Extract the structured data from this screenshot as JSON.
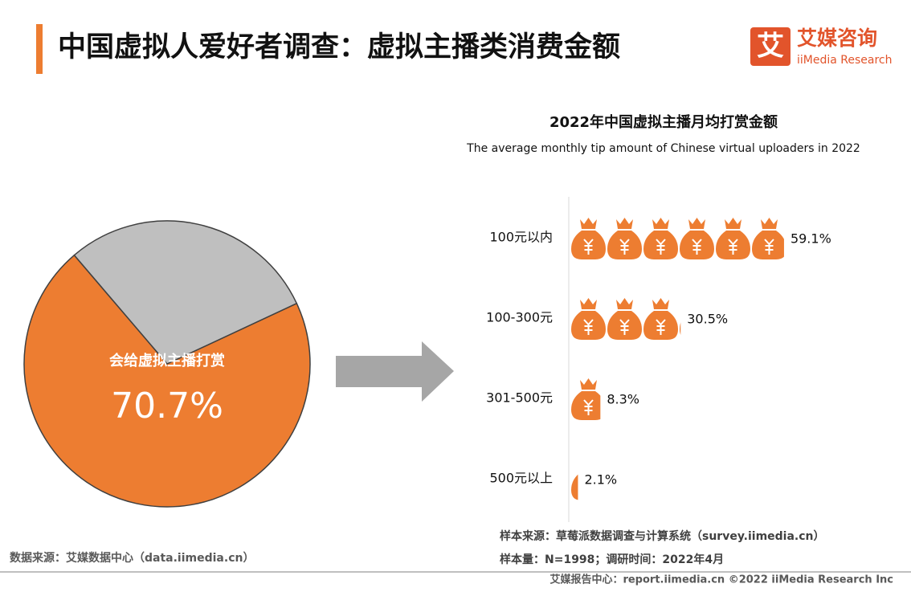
{
  "header": {
    "title": "中国虚拟人爱好者调查：虚拟主播类消费金额",
    "logo_mark": "艾",
    "logo_text": "艾媒咨询",
    "logo_subtext": "iiMedia Research"
  },
  "chart_data": [
    {
      "type": "pie",
      "categories": [
        "会给虚拟主播打赏",
        null
      ],
      "values": [
        70.7,
        29.3
      ],
      "value_labels": [
        "70.7%",
        null
      ],
      "colors": [
        "#ed7d31",
        "#bfbfbf"
      ]
    },
    {
      "type": "pictogram",
      "title": "2022年中国虚拟主播月均打赏金额",
      "subtitle": "The average monthly tip amount of Chinese virtual uploaders in 2022",
      "categories": [
        "100元以内",
        "100-300元",
        "301-500元",
        "500元以上"
      ],
      "values": [
        59.1,
        30.5,
        8.3,
        2.1
      ],
      "value_labels": [
        "59.1%",
        "30.5%",
        "8.3%",
        "2.1%"
      ],
      "color": "#ed7d31"
    }
  ],
  "footer": {
    "source": "数据来源：艾媒数据中心（data.iimedia.cn）",
    "sample_source": "样本来源：草莓派数据调查与计算系统（survey.iimedia.cn）",
    "sample_size": "样本量：N=1998；调研时间：2022年4月",
    "copyright": "艾媒报告中心：report.iimedia.cn   ©2022 iiMedia Research Inc"
  }
}
